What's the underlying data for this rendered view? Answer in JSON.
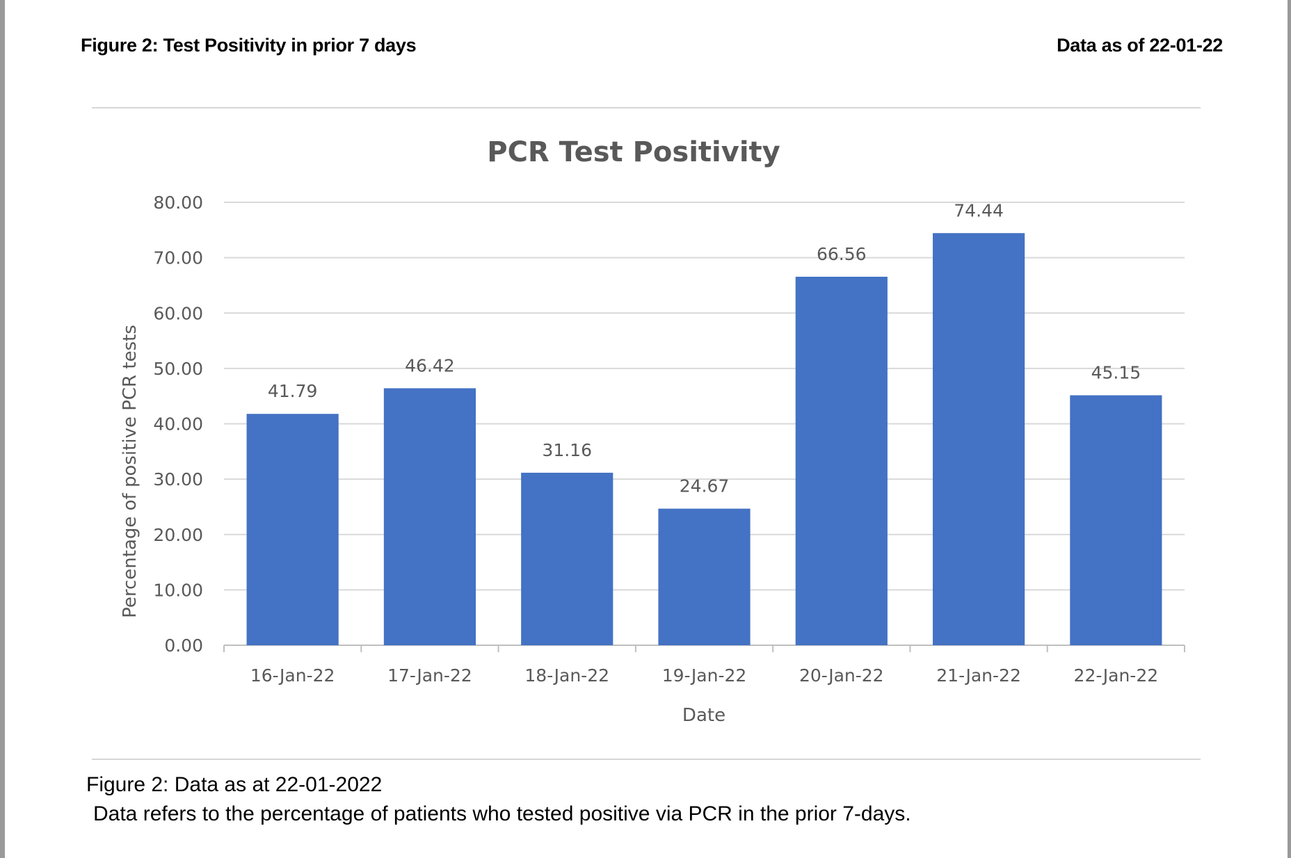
{
  "header": {
    "figure_heading": "Figure 2: Test Positivity in prior 7 days",
    "data_as_of": "Data as of 22-01-22"
  },
  "caption": {
    "line1": "Figure 2: Data as at 22-01-2022",
    "line2": "Data refers to the percentage of patients who tested positive via PCR in the prior 7-days."
  },
  "colors": {
    "bar": "#4472C4",
    "gridline": "#d9d9d9",
    "axis_text": "#595959",
    "title_text": "#595959"
  },
  "chart_data": {
    "type": "bar",
    "title": "PCR Test Positivity",
    "xlabel": "Date",
    "ylabel": "Percentage of positive PCR tests",
    "ylim": [
      0,
      80
    ],
    "yticks": [
      "0.00",
      "10.00",
      "20.00",
      "30.00",
      "40.00",
      "50.00",
      "60.00",
      "70.00",
      "80.00"
    ],
    "grid": true,
    "categories": [
      "16-Jan-22",
      "17-Jan-22",
      "18-Jan-22",
      "19-Jan-22",
      "20-Jan-22",
      "21-Jan-22",
      "22-Jan-22"
    ],
    "values": [
      41.79,
      46.42,
      31.16,
      24.67,
      66.56,
      74.44,
      45.15
    ],
    "data_labels": [
      "41.79",
      "46.42",
      "31.16",
      "24.67",
      "66.56",
      "74.44",
      "45.15"
    ]
  }
}
